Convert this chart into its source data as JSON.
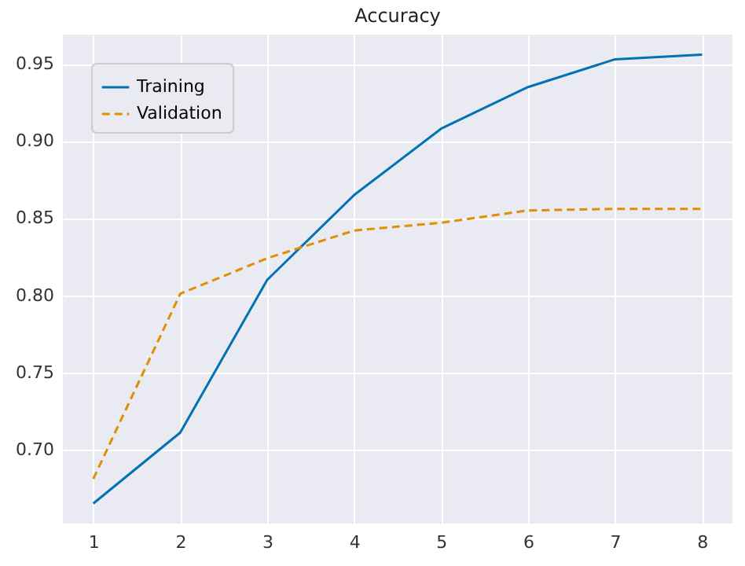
{
  "chart_data": {
    "type": "line",
    "title": "Accuracy",
    "x": [
      1,
      2,
      3,
      4,
      5,
      6,
      7,
      8
    ],
    "series": [
      {
        "name": "Training",
        "color": "#0173b2",
        "line_style": "solid",
        "values": [
          0.665,
          0.711,
          0.81,
          0.865,
          0.908,
          0.935,
          0.953,
          0.956
        ]
      },
      {
        "name": "Validation",
        "color": "#de8f05",
        "line_style": "dashed",
        "values": [
          0.681,
          0.801,
          0.824,
          0.842,
          0.847,
          0.855,
          0.856,
          0.856
        ]
      }
    ],
    "xlim": [
      0.65,
      8.35
    ],
    "xticks": [
      1,
      2,
      3,
      4,
      5,
      6,
      7,
      8
    ],
    "ylim": [
      0.652,
      0.969
    ],
    "yticks": [
      {
        "value": 0.7,
        "label": "0.70"
      },
      {
        "value": 0.75,
        "label": "0.75"
      },
      {
        "value": 0.8,
        "label": "0.80"
      },
      {
        "value": 0.85,
        "label": "0.85"
      },
      {
        "value": 0.9,
        "label": "0.90"
      },
      {
        "value": 0.95,
        "label": "0.95"
      }
    ],
    "grid": true,
    "legend": "top left",
    "marker": "none"
  }
}
